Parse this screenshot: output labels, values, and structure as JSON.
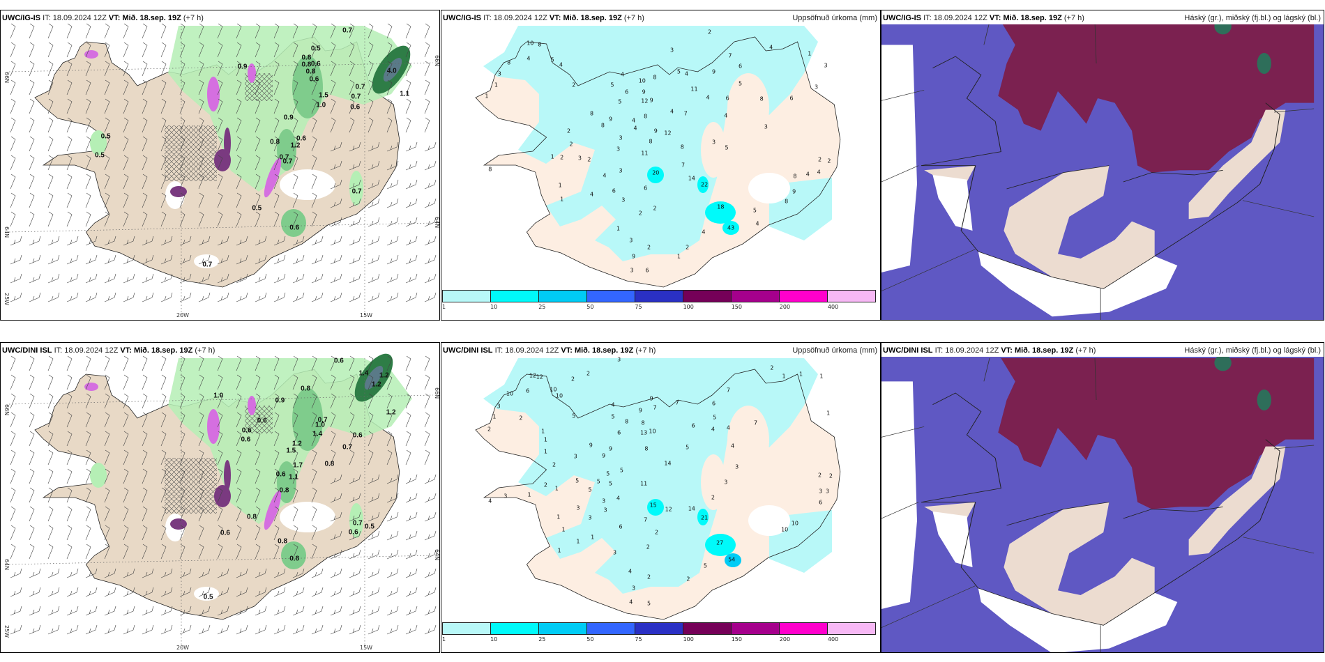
{
  "header_common": {
    "it_label": "IT:",
    "it_value": "18.09.2024 12Z",
    "vt_text": "VT: Mið. 18.sep. 19Z",
    "offset": "(+7 h)"
  },
  "top": {
    "model": "UWC/IG-IS",
    "left": {
      "axis": {
        "lat_66": "66N",
        "lat_64": "64N",
        "lon_25": "25W",
        "lon_20": "20W",
        "lon_15": "15W"
      },
      "labels": [
        "0.7",
        "0.5",
        "0.8",
        "0.8",
        "0.6",
        "0.8",
        "0.6",
        "4.0",
        "0.7",
        "0.7",
        "0.6",
        "1.1",
        "1.5",
        "1.0",
        "0.9",
        "0.8",
        "0.6",
        "1.2",
        "0.7",
        "0.7",
        "0.5",
        "0.5",
        "0.5",
        "0.7",
        "0.6",
        "0.7",
        "0.9"
      ]
    },
    "middle": {
      "title_right": "Uppsöfnuð úrkoma (mm)",
      "labels": [
        "10",
        "8",
        "4",
        "5",
        "4",
        "8",
        "3",
        "2",
        "1",
        "1",
        "3",
        "2",
        "4",
        "7",
        "1",
        "3",
        "3",
        "6",
        "4",
        "10",
        "8",
        "5",
        "4",
        "9",
        "6",
        "5",
        "5",
        "6",
        "9",
        "11",
        "4",
        "6",
        "8",
        "5",
        "12",
        "9",
        "4",
        "7",
        "4",
        "8",
        "9",
        "4",
        "8",
        "8",
        "4",
        "9",
        "12",
        "3",
        "2",
        "3",
        "8",
        "2",
        "3",
        "8",
        "3",
        "5",
        "11",
        "1",
        "2",
        "3",
        "2",
        "2",
        "2",
        "8",
        "3",
        "20",
        "7",
        "14",
        "22",
        "4",
        "4",
        "8",
        "4",
        "6",
        "6",
        "4",
        "1",
        "1",
        "3",
        "9",
        "8",
        "18",
        "2",
        "2",
        "5",
        "4",
        "43",
        "4",
        "1",
        "3",
        "2",
        "2",
        "1",
        "9",
        "3",
        "6"
      ]
    },
    "right": {
      "title_right": "Háský (gr.), miðský (fj.bl.) og lágský (bl.)"
    }
  },
  "bottom": {
    "model": "UWC/DINI ISL",
    "left": {
      "axis": {
        "lat_66": "66N",
        "lat_64": "64N",
        "lon_25": "25W",
        "lon_20": "20W",
        "lon_15": "15W"
      },
      "labels": [
        "0.6",
        "1.4",
        "1.2",
        "1.2",
        "0.8",
        "1.2",
        "0.9",
        "0.7",
        "1.0",
        "1.4",
        "0.6",
        "0.7",
        "1.2",
        "1.5",
        "1.7",
        "0.8",
        "0.6",
        "1.1",
        "0.8",
        "0.6",
        "0.6",
        "0.6",
        "0.8",
        "0.6",
        "0.8",
        "0.8",
        "0.7",
        "0.5",
        "0.6",
        "0.5",
        "1.0"
      ]
    },
    "middle": {
      "title_right": "Uppsöfnuð úrkoma (mm)",
      "labels": [
        "3",
        "2",
        "2",
        "12",
        "12",
        "2",
        "1",
        "1",
        "1",
        "10",
        "6",
        "10",
        "10",
        "3",
        "1",
        "2",
        "5",
        "2",
        "1",
        "1",
        "1",
        "3",
        "2",
        "7",
        "6",
        "5",
        "4",
        "4",
        "7",
        "1",
        "4",
        "9",
        "9",
        "7",
        "7",
        "5",
        "8",
        "8",
        "6",
        "6",
        "13",
        "10",
        "9",
        "9",
        "8",
        "5",
        "4",
        "9",
        "14",
        "3",
        "5",
        "5",
        "5",
        "5",
        "5",
        "11",
        "3",
        "2",
        "2",
        "5",
        "2",
        "1",
        "1",
        "3",
        "4",
        "3",
        "3",
        "6",
        "3",
        "4",
        "3",
        "3",
        "15",
        "12",
        "14",
        "2",
        "21",
        "1",
        "3",
        "7",
        "6",
        "10",
        "10",
        "1",
        "1",
        "1",
        "2",
        "27",
        "2",
        "3",
        "1",
        "54",
        "5",
        "4",
        "2",
        "2",
        "3",
        "4",
        "5"
      ]
    },
    "right": {
      "title_right": "Háský (gr.), miðský (fj.bl.) og lágský (bl.)"
    }
  },
  "colorbar": {
    "labels": [
      "1",
      "10",
      "25",
      "50",
      "75",
      "100",
      "150",
      "200",
      "400"
    ],
    "colors": [
      "#b8f8f8",
      "#00fafa",
      "#00ccf5",
      "#3366ff",
      "#2a30c4",
      "#750058",
      "#a5008c",
      "#ff00cc",
      "#f7b8f5"
    ]
  },
  "colors": {
    "land": "#e8d9c6",
    "land_light": "#fdeee2",
    "precip_light": "#b5efb5",
    "precip_mid": "#7fcc8c",
    "precip_dark": "#2e7d46",
    "snow": "#d56fe0",
    "snow_dark": "#7a3a80",
    "sky_low": "#5f58c3",
    "sky_high": "#7b2150"
  }
}
